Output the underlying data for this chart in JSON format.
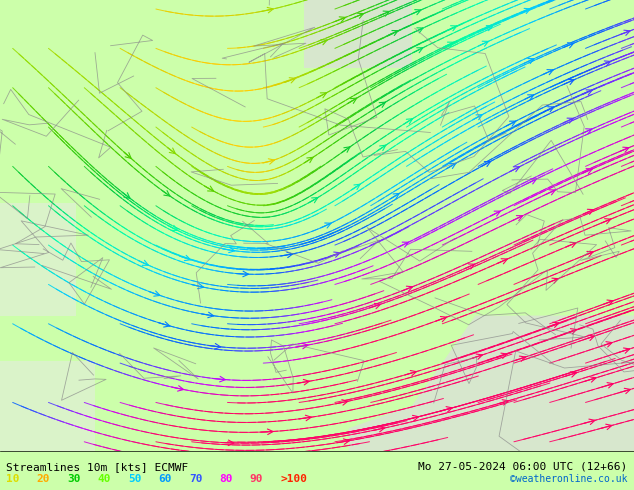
{
  "title_left": "Streamlines 10m [kts] ECMWF",
  "title_right": "Mo 27-05-2024 06:00 UTC (12+66)",
  "credit": "©weatheronline.co.uk",
  "legend_values": [
    "10",
    "20",
    "30",
    "40",
    "50",
    "60",
    "70",
    "80",
    "90",
    ">100"
  ],
  "legend_colors": [
    "#ffff00",
    "#ffcc00",
    "#00cc00",
    "#00ff00",
    "#00ffff",
    "#00ccff",
    "#0099ff",
    "#ff00ff",
    "#ff0066",
    "#ff0000"
  ],
  "bg_color": "#aaddaa",
  "land_color": "#ccffaa",
  "sea_color": "#dddddd",
  "streamline_colors": {
    "low": "#ffff00",
    "mid_low": "#ffcc00",
    "mid": "#88dd00",
    "mid_high": "#00cc44",
    "high": "#00ff88",
    "very_high": "#00ffff",
    "extreme": "#ff00ff"
  },
  "figsize": [
    6.34,
    4.9
  ],
  "dpi": 100
}
